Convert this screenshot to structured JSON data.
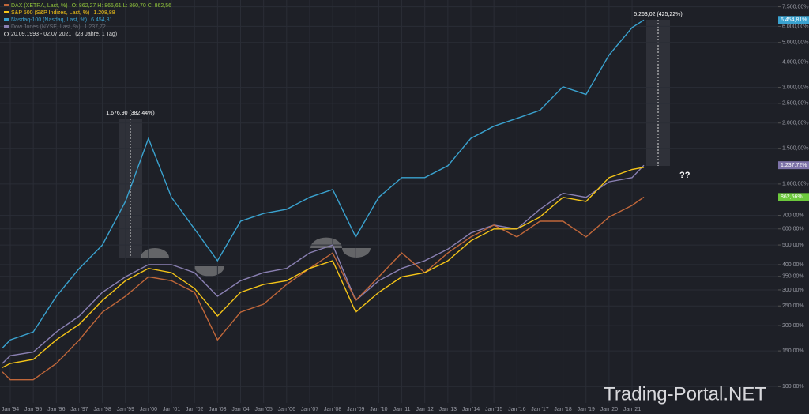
{
  "chart_data": {
    "type": "line",
    "log_scale": true,
    "grid": true,
    "period": "20.09.1993 - 02.07.2021",
    "period_note": "(28 Jahre, 1 Tag)",
    "categories": [
      null,
      "Jan '94",
      "Jan '95",
      "Jan '96",
      "Jan '97",
      "Jan '98",
      "Jan '99",
      "Jan '00",
      "Jan '01",
      "Jan '02",
      "Jan '03",
      "Jan '04",
      "Jan '05",
      "Jan '06",
      "Jan '07",
      "Jan '08",
      "Jan '09",
      "Jan '10",
      "Jan '11",
      "Jan '12",
      "Jan '13",
      "Jan '14",
      "Jan '15",
      "Jan '16",
      "Jan '17",
      "Jan '18",
      "Jan '19",
      "Jan '20",
      "Jan '21",
      null
    ],
    "ylim": [
      83,
      8100
    ],
    "yticks": [
      {
        "value": 7500,
        "label": "7.500,00%"
      },
      {
        "value": 6000,
        "label": "6.000,00%"
      },
      {
        "value": 5000,
        "label": "5.000,00%"
      },
      {
        "value": 4000,
        "label": "4.000,00%"
      },
      {
        "value": 3000,
        "label": "3.000,00%"
      },
      {
        "value": 2500,
        "label": "2.500,00%"
      },
      {
        "value": 2000,
        "label": "2.000,00%"
      },
      {
        "value": 1500,
        "label": "1.500,00%"
      },
      {
        "value": 1000,
        "label": "1.000,00%"
      },
      {
        "value": 700,
        "label": "700,00%"
      },
      {
        "value": 600,
        "label": "600,00%"
      },
      {
        "value": 500,
        "label": "500,00%"
      },
      {
        "value": 400,
        "label": "400,00%"
      },
      {
        "value": 350,
        "label": "350,00%"
      },
      {
        "value": 300,
        "label": "300,00%"
      },
      {
        "value": 250,
        "label": "250,00%"
      },
      {
        "value": 200,
        "label": "200,00%"
      },
      {
        "value": 150,
        "label": "150,00%"
      },
      {
        "value": 100,
        "label": "100,00%"
      }
    ],
    "series": [
      {
        "name": "DAX (XETRA, Last, %)",
        "legend_value": "O: 862,27  H: 865,61  L: 860,70  C: 862,56",
        "color": "#c0673a",
        "legend_color": "#8fc33a",
        "badge_color": "#6cc93c",
        "last_label": "862,56%",
        "values": [
          118,
          108,
          108,
          130,
          170,
          233,
          279,
          348,
          333,
          292,
          170,
          233,
          255,
          319,
          383,
          457,
          266,
          348,
          457,
          365,
          457,
          548,
          627,
          548,
          655,
          655,
          548,
          687,
          784,
          862.56
        ]
      },
      {
        "name": "S&P 500 (S&P Indizes, Last, %)",
        "legend_value": "1.208,88",
        "color": "#f5c518",
        "legend_color": "#f5c518",
        "values": [
          124,
          130,
          136,
          170,
          203,
          266,
          333,
          383,
          365,
          305,
          223,
          292,
          319,
          333,
          383,
          418,
          233,
          292,
          348,
          365,
          418,
          524,
          600,
          600,
          687,
          860,
          820,
          1075,
          1180,
          1208.88
        ]
      },
      {
        "name": "Nasdaq-100 (Nasdaq, Last, %)",
        "legend_value": "6.454,81",
        "color": "#3aa2cf",
        "legend_color": "#3aa2cf",
        "badge_color": "#3aa2cf",
        "last_label": "6.454,81%",
        "values": [
          155,
          170,
          186,
          279,
          383,
          500,
          820,
          1680,
          860,
          600,
          418,
          655,
          715,
          750,
          860,
          940,
          548,
          860,
          1075,
          1075,
          1230,
          1680,
          1930,
          2110,
          2310,
          3020,
          2770,
          4330,
          5920,
          6454.81
        ]
      },
      {
        "name": "Dow Jones (NYSE, Last, %)",
        "legend_value": "1.237,72",
        "color": "#8a80b2",
        "legend_color": "#6b6f7a",
        "badge_color": "#7d72a8",
        "last_label": "1.237,72%",
        "values": [
          130,
          142,
          148,
          186,
          223,
          292,
          348,
          400,
          400,
          365,
          279,
          333,
          365,
          383,
          457,
          500,
          266,
          333,
          383,
          418,
          477,
          573,
          627,
          600,
          750,
          900,
          860,
          1025,
          1075,
          1237.72
        ]
      }
    ],
    "annotations": [
      "1.676,90 (382,44%)",
      "5.263,02 (425,22%)",
      "??"
    ],
    "watermark": "Trading-Portal.NET"
  }
}
